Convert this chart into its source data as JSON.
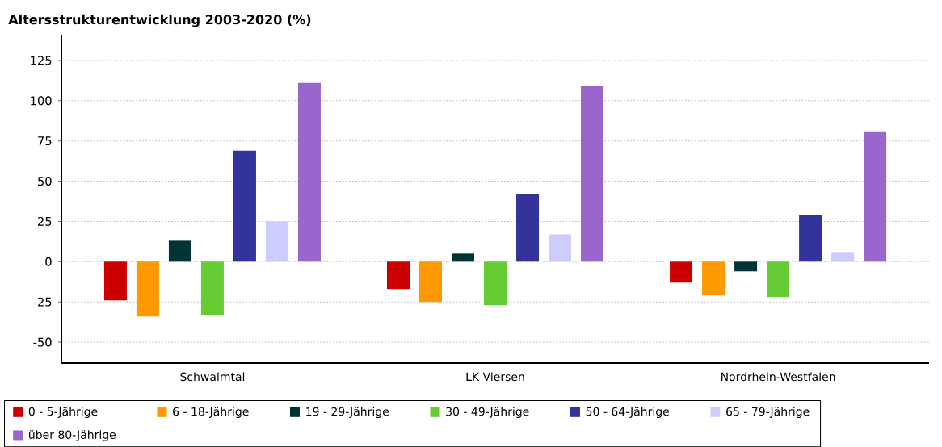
{
  "chart_data": {
    "type": "bar",
    "title": "Altersstrukturentwicklung 2003-2020 (%)",
    "categories": [
      "Schwalmtal",
      "LK Viersen",
      "Nordrhein-Westfalen"
    ],
    "series": [
      {
        "name": "0 - 5-Jährige",
        "color": "#cc0000",
        "values": [
          -24,
          -17,
          -13
        ]
      },
      {
        "name": "6 - 18-Jährige",
        "color": "#ff9900",
        "values": [
          -34,
          -25,
          -21
        ]
      },
      {
        "name": "19 - 29-Jährige",
        "color": "#003333",
        "values": [
          13,
          5,
          -6
        ]
      },
      {
        "name": "30 - 49-Jährige",
        "color": "#66cc33",
        "values": [
          -33,
          -27,
          -22
        ]
      },
      {
        "name": "50 - 64-Jährige",
        "color": "#333399",
        "values": [
          69,
          42,
          29
        ]
      },
      {
        "name": "65 - 79-Jährige",
        "color": "#ccccff",
        "values": [
          25,
          17,
          6
        ]
      },
      {
        "name": "über 80-Jährige",
        "color": "#9966cc",
        "values": [
          111,
          109,
          81
        ]
      }
    ],
    "ylim": [
      -63,
      141
    ],
    "yticks": [
      -50,
      -25,
      0,
      25,
      50,
      75,
      100,
      125
    ],
    "grid": "y",
    "legend": "bottom"
  }
}
